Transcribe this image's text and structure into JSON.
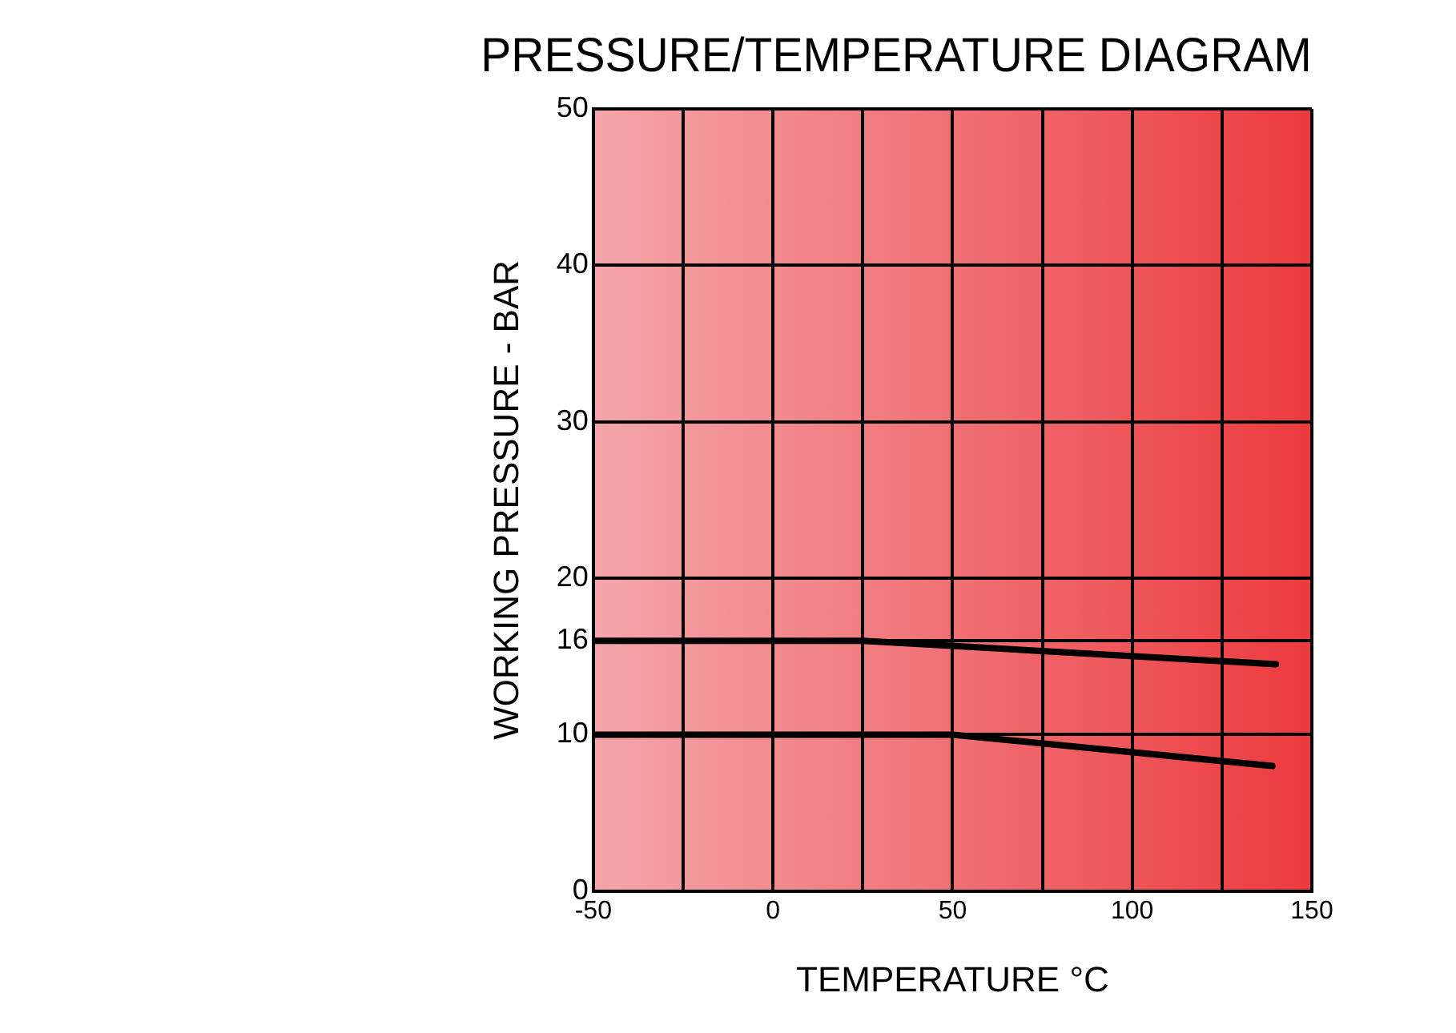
{
  "chart_data": {
    "type": "line",
    "title": "PRESSURE/TEMPERATURE DIAGRAM",
    "xlabel": "TEMPERATURE °C",
    "ylabel": "WORKING PRESSURE - BAR",
    "series": [
      {
        "color": "#000000",
        "x": [
          -50,
          25,
          140
        ],
        "values": [
          16,
          16,
          14.5
        ]
      },
      {
        "color": "#000000",
        "x": [
          -50,
          50,
          139
        ],
        "values": [
          10,
          10,
          8
        ]
      }
    ],
    "xlim": [
      -50,
      150
    ],
    "xticks": [
      -50,
      {
        "value": -25,
        "label": null
      },
      0,
      {
        "value": 25,
        "label": null
      },
      50,
      {
        "value": 75,
        "label": null
      },
      100,
      {
        "value": 125,
        "label": null
      },
      150
    ],
    "ylim": [
      0,
      50
    ],
    "yticks": [
      0,
      10,
      16,
      20,
      30,
      40,
      50
    ],
    "grid": true,
    "legend": false,
    "marker": "none",
    "line_style": "solid"
  }
}
